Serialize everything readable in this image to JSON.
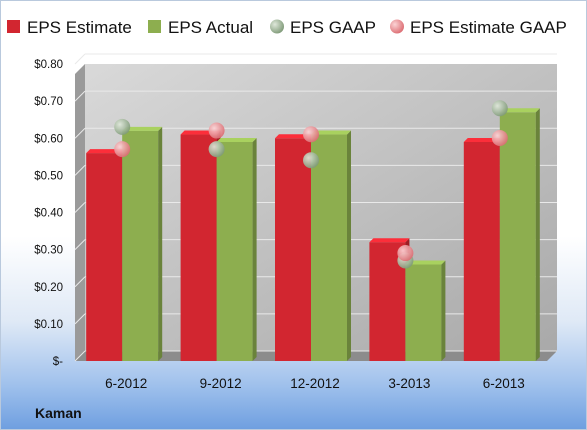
{
  "chart_data": {
    "type": "bar",
    "source_label": "Kaman",
    "categories": [
      "6-2012",
      "9-2012",
      "12-2012",
      "3-2013",
      "6-2013"
    ],
    "series": [
      {
        "name": "EPS Estimate",
        "kind": "bar",
        "color": "#d22630",
        "values": [
          0.56,
          0.61,
          0.6,
          0.32,
          0.59
        ]
      },
      {
        "name": "EPS Actual",
        "kind": "bar",
        "color": "#8dae4f",
        "values": [
          0.62,
          0.59,
          0.61,
          0.26,
          0.67
        ]
      },
      {
        "name": "EPS GAAP",
        "kind": "marker",
        "color": "#8fa887",
        "values": [
          0.62,
          0.56,
          0.53,
          0.26,
          0.67
        ]
      },
      {
        "name": "EPS Estimate GAAP",
        "kind": "marker",
        "color": "#e88b8f",
        "values": [
          0.56,
          0.61,
          0.6,
          0.28,
          0.59
        ]
      }
    ],
    "y_ticks": [
      {
        "value": 0.0,
        "label": "$-"
      },
      {
        "value": 0.1,
        "label": "$0.10"
      },
      {
        "value": 0.2,
        "label": "$0.20"
      },
      {
        "value": 0.3,
        "label": "$0.30"
      },
      {
        "value": 0.4,
        "label": "$0.40"
      },
      {
        "value": 0.5,
        "label": "$0.50"
      },
      {
        "value": 0.6,
        "label": "$0.60"
      },
      {
        "value": 0.7,
        "label": "$0.70"
      },
      {
        "value": 0.8,
        "label": "$0.80"
      }
    ],
    "ylim": [
      0,
      0.8
    ],
    "grid": true,
    "legend_position": "top",
    "plot_background": "#bdbdbd"
  }
}
